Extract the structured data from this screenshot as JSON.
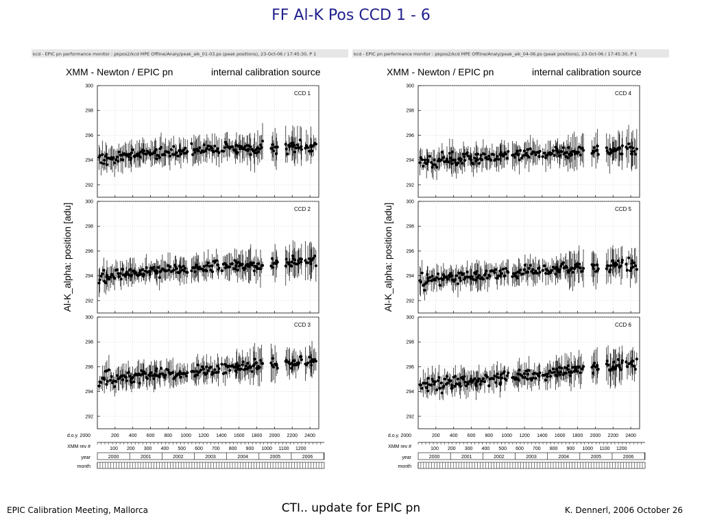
{
  "slide": {
    "title": "FF   Al-K   Pos   CCD 1 - 6",
    "footer_left": "EPIC Calibration Meeting, Mallorca",
    "footer_center": "CTI.. update for EPIC pn",
    "footer_right": "K. Dennerl, 2006 October 26"
  },
  "colors": {
    "title": "#1f1f8c",
    "axes": "#000000",
    "grid": "#bbbbbb",
    "header_bar": "#e6e6e6"
  },
  "chart_data": [
    {
      "type": "scatter",
      "figure": "left",
      "header": "kcd - EPIC pn performance monitor : pkpos2/kcd      MPE  Offline/Analy/peak_alk_01-03.ps (peak positions), 23-Oct-06 / 17:45:30, P   1",
      "title_left": "XMM - Newton  /  EPIC pn",
      "title_right": "internal calibration source",
      "ylabel": "Al-K_alpha:  position  [adu]",
      "x_row_labels": [
        "d.o.y. 2000",
        "XMM rev #",
        "year",
        "month"
      ],
      "doy_ticks": [
        "200",
        "400",
        "600",
        "800",
        "1000",
        "1200",
        "1400",
        "1600",
        "1800",
        "2000",
        "2200",
        "2400"
      ],
      "rev_ticks": [
        "100",
        "200",
        "300",
        "400",
        "500",
        "600",
        "700",
        "800",
        "900",
        "1000",
        "1100",
        "1200"
      ],
      "years": [
        "2000",
        "2001",
        "2002",
        "2003",
        "2004",
        "2005",
        "2006"
      ],
      "xlim": [
        0,
        2500
      ],
      "panels": [
        {
          "label": "CCD  1",
          "ylim": [
            291,
            300
          ],
          "yticks": [
            "300",
            "298",
            "296",
            "294",
            "292"
          ],
          "trend": [
            294.1,
            294.9,
            295.1
          ]
        },
        {
          "label": "CCD  2",
          "ylim": [
            291,
            300
          ],
          "yticks": [
            "300",
            "298",
            "296",
            "294",
            "292"
          ],
          "trend": [
            293.9,
            294.7,
            295.2
          ]
        },
        {
          "label": "CCD  3",
          "ylim": [
            291,
            300
          ],
          "yticks": [
            "300",
            "298",
            "296",
            "294",
            "292"
          ],
          "trend": [
            294.9,
            295.7,
            296.5
          ]
        }
      ]
    },
    {
      "type": "scatter",
      "figure": "right",
      "header": "kcd - EPIC pn performance monitor : pkpos2/kcd      MPE  Offline/Analy/peak_alk_04-06.ps (peak positions), 23-Oct-06 / 17:45:30, P   1",
      "title_left": "XMM - Newton  /  EPIC pn",
      "title_right": "internal calibration source",
      "ylabel": "Al-K_alpha:  position  [adu]",
      "x_row_labels": [
        "d.o.y. 2000",
        "XMM rev #",
        "year",
        "month"
      ],
      "doy_ticks": [
        "200",
        "400",
        "600",
        "800",
        "1000",
        "1200",
        "1400",
        "1600",
        "1800",
        "2000",
        "2200",
        "2400"
      ],
      "rev_ticks": [
        "100",
        "200",
        "300",
        "400",
        "500",
        "600",
        "700",
        "800",
        "900",
        "1000",
        "1100",
        "1200"
      ],
      "years": [
        "2000",
        "2001",
        "2002",
        "2003",
        "2004",
        "2005",
        "2006"
      ],
      "xlim": [
        0,
        2500
      ],
      "panels": [
        {
          "label": "CCD  4",
          "ylim": [
            291,
            300
          ],
          "yticks": [
            "300",
            "298",
            "296",
            "294",
            "292"
          ],
          "trend": [
            293.8,
            294.5,
            294.8
          ]
        },
        {
          "label": "CCD  5",
          "ylim": [
            291,
            300
          ],
          "yticks": [
            "300",
            "298",
            "296",
            "294",
            "292"
          ],
          "trend": [
            293.6,
            294.3,
            295.0
          ]
        },
        {
          "label": "CCD  6",
          "ylim": [
            291,
            300
          ],
          "yticks": [
            "300",
            "298",
            "296",
            "294",
            "292"
          ],
          "trend": [
            294.5,
            295.3,
            296.3
          ]
        }
      ]
    }
  ]
}
